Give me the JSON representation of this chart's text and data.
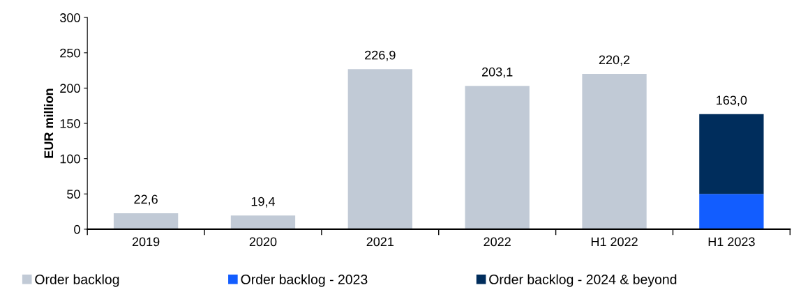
{
  "chart_data": {
    "type": "bar",
    "stacked": true,
    "ylabel": "EUR million",
    "categories": [
      "2019",
      "2020",
      "2021",
      "2022",
      "H1 2022",
      "H1 2023"
    ],
    "series": [
      {
        "name": "Order backlog",
        "color": "#c1cad6",
        "values": [
          22.6,
          19.4,
          226.9,
          203.1,
          220.2,
          null
        ]
      },
      {
        "name": "Order backlog - 2023",
        "color": "#125dff",
        "values": [
          null,
          null,
          null,
          null,
          null,
          50
        ]
      },
      {
        "name": "Order backlog - 2024 & beyond",
        "color": "#002d5c",
        "values": [
          null,
          null,
          null,
          null,
          null,
          113
        ]
      }
    ],
    "totals": [
      "22,6",
      "19,4",
      "226,9",
      "203,1",
      "220,2",
      "163,0"
    ],
    "ylim": [
      0,
      300
    ],
    "yticks": [
      0,
      50,
      100,
      150,
      200,
      250,
      300
    ],
    "grid": false,
    "legend": "bottom"
  }
}
